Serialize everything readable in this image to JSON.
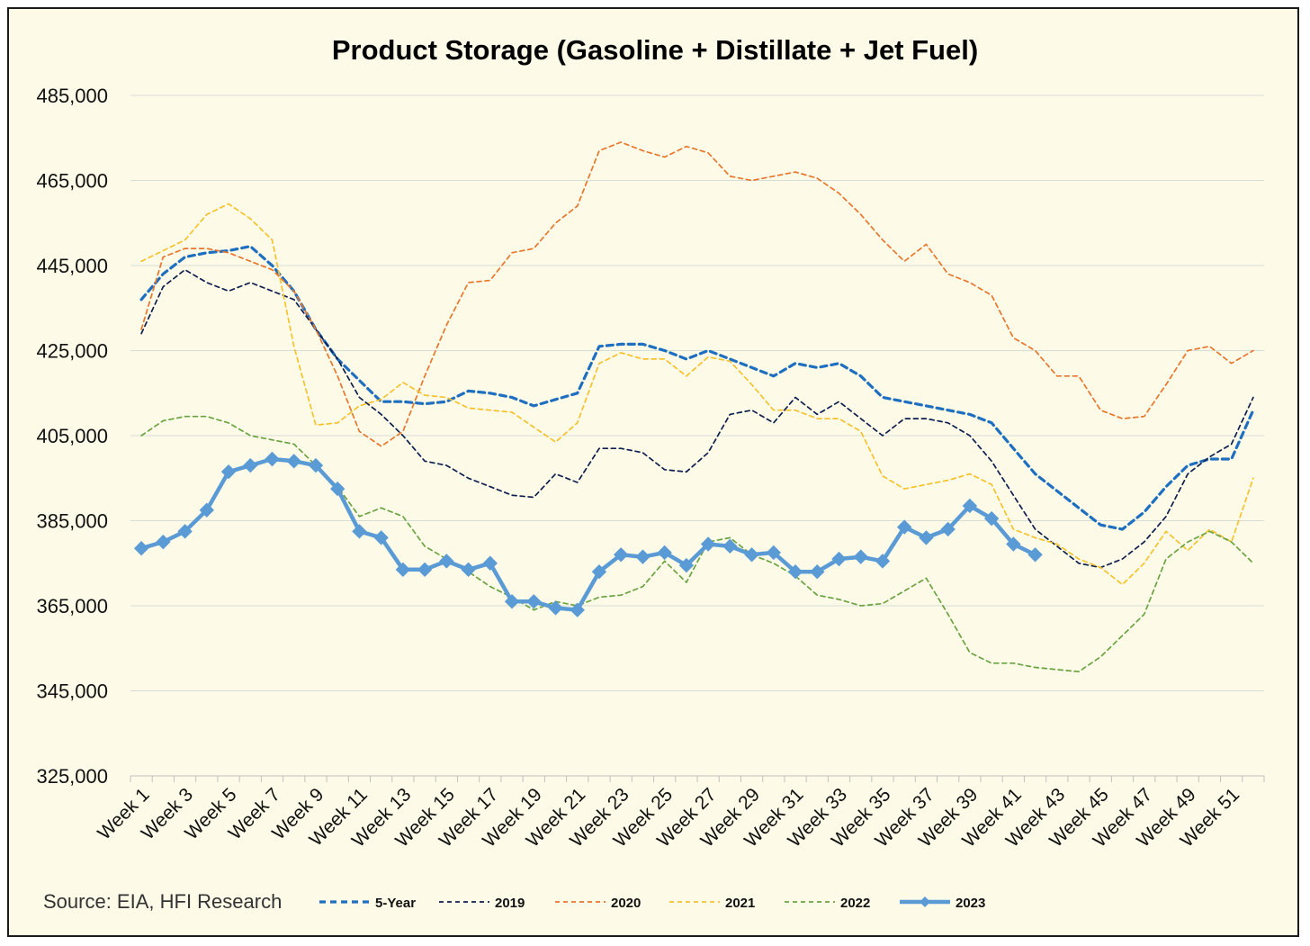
{
  "chart_data": {
    "type": "line",
    "title": "Product Storage (Gasoline + Distillate + Jet Fuel)",
    "xlabel": "",
    "ylabel": "",
    "ylim": [
      325000,
      485000
    ],
    "yticks": [
      485000,
      465000,
      445000,
      425000,
      405000,
      385000,
      365000,
      345000,
      325000
    ],
    "ytick_labels": [
      "485,000",
      "465,000",
      "445,000",
      "425,000",
      "405,000",
      "385,000",
      "365,000",
      "345,000",
      "325,000"
    ],
    "xtick_labels": [
      "Week 1",
      "Week 3",
      "Week 5",
      "Week 7",
      "Week 9",
      "Week 11",
      "Week 13",
      "Week 15",
      "Week 17",
      "Week 19",
      "Week 21",
      "Week 23",
      "Week 25",
      "Week 27",
      "Week 29",
      "Week 31",
      "Week 33",
      "Week 35",
      "Week 37",
      "Week 39",
      "Week 41",
      "Week 43",
      "Week 45",
      "Week 47",
      "Week 49",
      "Week 51"
    ],
    "grid": true,
    "legend_position": "bottom",
    "source": "Source: EIA, HFI Research",
    "series": [
      {
        "name": "5-Year",
        "color": "#1f6fc0",
        "style": "dashed-bold",
        "values": [
          437000,
          443000,
          447000,
          448000,
          448500,
          449500,
          445000,
          439000,
          430000,
          423000,
          418000,
          413000,
          413000,
          412500,
          413000,
          415500,
          415000,
          414000,
          412000,
          413500,
          415000,
          426000,
          426500,
          426500,
          425000,
          423000,
          425000,
          423000,
          421000,
          419000,
          422000,
          421000,
          422000,
          419000,
          414000,
          413000,
          412000,
          411000,
          410000,
          408000,
          402000,
          396000,
          392000,
          388000,
          384000,
          383000,
          387000,
          393000,
          398000,
          399500,
          399500,
          411000
        ]
      },
      {
        "name": "2019",
        "color": "#0d1f4f",
        "style": "dashed-thin",
        "values": [
          429000,
          440000,
          444000,
          441000,
          439000,
          441000,
          439000,
          437000,
          430000,
          423000,
          414000,
          410000,
          405000,
          399000,
          398000,
          395000,
          393000,
          391000,
          390500,
          396000,
          394000,
          402000,
          402000,
          401000,
          397000,
          396500,
          401000,
          410000,
          411000,
          408000,
          414000,
          410000,
          413000,
          409000,
          405000,
          409000,
          409000,
          408000,
          405000,
          399000,
          391000,
          383000,
          379000,
          375000,
          374000,
          376000,
          380000,
          386000,
          396000,
          400000,
          403000,
          414000
        ]
      },
      {
        "name": "2020",
        "color": "#e8762d",
        "style": "dashed-thin",
        "values": [
          430000,
          447000,
          449000,
          449000,
          448000,
          446000,
          444000,
          439000,
          430000,
          419000,
          406000,
          402500,
          406000,
          419000,
          431000,
          441000,
          441500,
          448000,
          449000,
          455000,
          459000,
          472000,
          474000,
          472000,
          470500,
          473000,
          471500,
          466000,
          465000,
          466000,
          467000,
          465500,
          462000,
          457000,
          451000,
          446000,
          450000,
          443000,
          441000,
          438000,
          428000,
          425000,
          419000,
          419000,
          411000,
          409000,
          409500,
          417000,
          425000,
          426000,
          422000,
          425000
        ]
      },
      {
        "name": "2021",
        "color": "#f5c22e",
        "style": "dashed-thin",
        "values": [
          446000,
          448500,
          451000,
          457000,
          459500,
          456000,
          451000,
          426000,
          407500,
          408000,
          412000,
          413500,
          417500,
          414500,
          414000,
          411500,
          411000,
          410500,
          407000,
          403500,
          408000,
          422000,
          424500,
          423000,
          423000,
          419000,
          423500,
          422500,
          417000,
          411000,
          411000,
          409000,
          409000,
          406000,
          395500,
          392500,
          393500,
          394500,
          396000,
          393500,
          383000,
          381000,
          379500,
          376000,
          374000,
          370000,
          375000,
          382500,
          378000,
          383000,
          380000,
          395000
        ]
      },
      {
        "name": "2022",
        "color": "#6aa342",
        "style": "dashed-thin",
        "values": [
          405000,
          408500,
          409500,
          409500,
          408000,
          405000,
          404000,
          403000,
          398000,
          393000,
          386000,
          388000,
          386000,
          379000,
          376000,
          373000,
          369500,
          367000,
          364000,
          366000,
          365000,
          367000,
          367500,
          369500,
          375500,
          370500,
          380000,
          381000,
          377000,
          375000,
          372000,
          367500,
          366500,
          365000,
          365500,
          368500,
          371500,
          363000,
          354000,
          351500,
          351500,
          350500,
          350000,
          349500,
          353000,
          358000,
          363000,
          376000,
          380000,
          382500,
          380000,
          375000
        ]
      },
      {
        "name": "2023",
        "color": "#5b9bd5",
        "style": "solid-diamond",
        "values": [
          378500,
          380000,
          382500,
          387500,
          396500,
          398000,
          399500,
          399000,
          398000,
          392500,
          382500,
          381000,
          373500,
          373500,
          375500,
          373500,
          375000,
          366000,
          366000,
          364500,
          364000,
          373000,
          377000,
          376500,
          377500,
          374500,
          379500,
          379000,
          377000,
          377500,
          373000,
          373000,
          376000,
          376500,
          375500,
          383500,
          381000,
          383000,
          388500,
          385500,
          379500,
          377000
        ]
      }
    ]
  }
}
